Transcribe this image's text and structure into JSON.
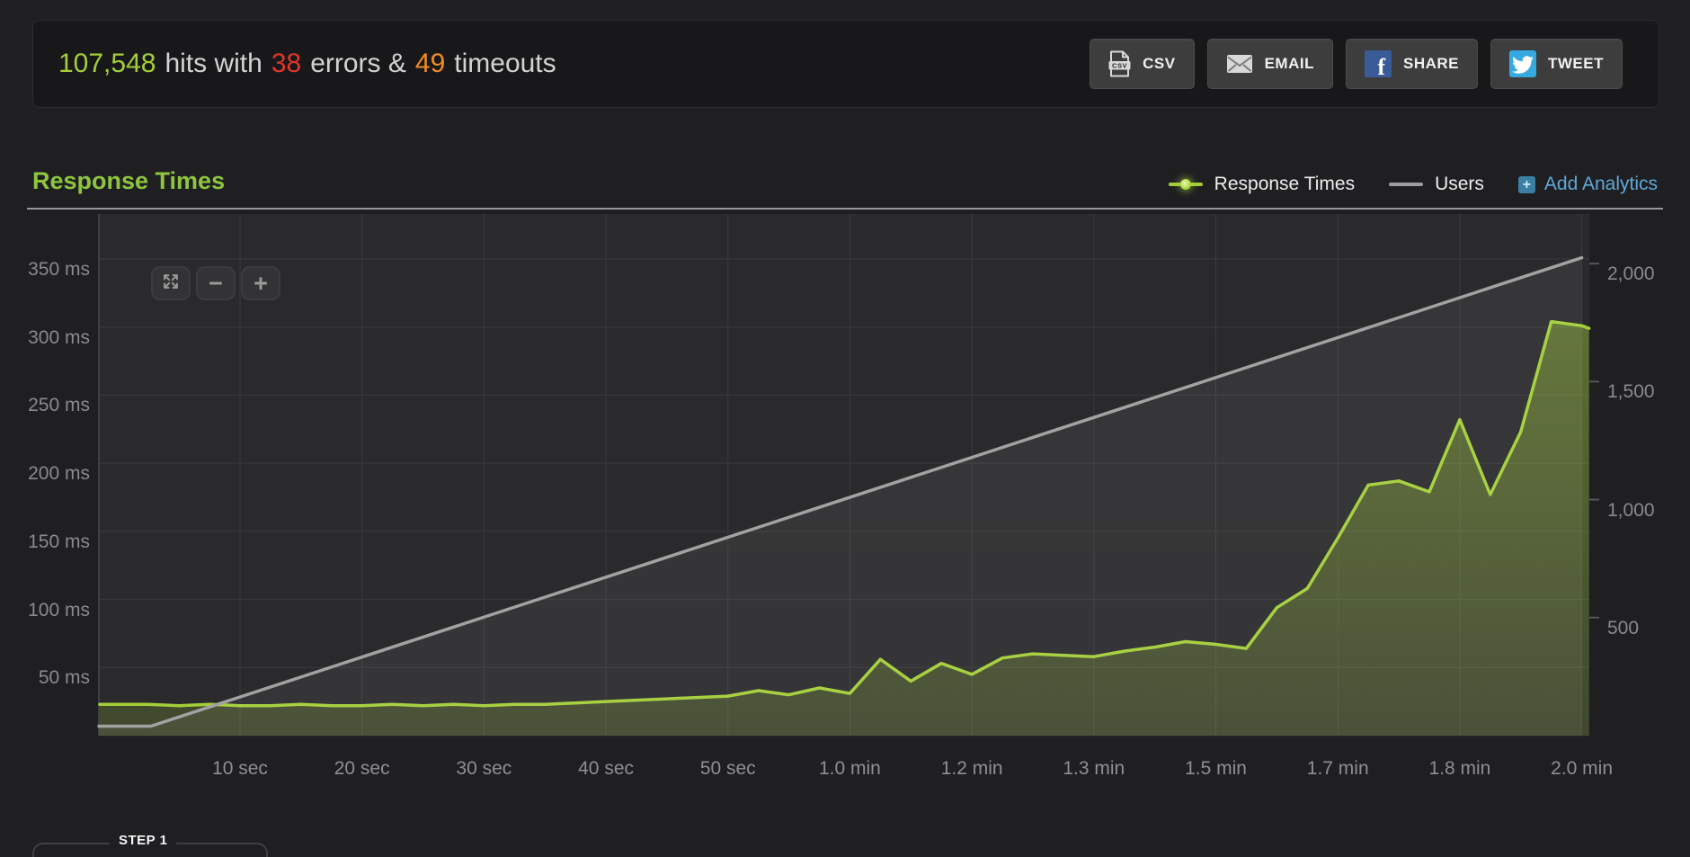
{
  "stats_bar": {
    "hits_value": "107,548",
    "hits_text": "hits with",
    "errors_value": "38",
    "errors_text": "errors &",
    "timeouts_value": "49",
    "timeouts_text": "timeouts",
    "buttons": {
      "csv": "CSV",
      "email": "EMAIL",
      "share": "SHARE",
      "tweet": "TWEET"
    }
  },
  "section": {
    "title": "Response Times"
  },
  "legend": {
    "response_times": "Response Times",
    "users": "Users",
    "add_analytics": "Add Analytics",
    "add_icon_glyph": "+"
  },
  "chart_controls": {
    "zoom_out_glyph": "−",
    "zoom_in_glyph": "+"
  },
  "step_section": {
    "label": "STEP 1"
  },
  "colors": {
    "accent_green": "#a3ce38",
    "title_green": "#8dc63e",
    "error_red": "#e0352b",
    "timeout_orange": "#ef8d22",
    "users_gray": "#a2a2a2",
    "analytics_blue": "#5da9d7",
    "facebook_blue": "#3a5a98",
    "twitter_blue": "#36a9e0"
  },
  "chart_data": {
    "type": "area",
    "title": "Response Times",
    "grid": true,
    "legend_position": "top-right",
    "x_axis": {
      "unit": "seconds",
      "min": -1.57,
      "max": 120.62,
      "ticks": [
        {
          "v": 10,
          "label": "10 sec"
        },
        {
          "v": 20,
          "label": "20 sec"
        },
        {
          "v": 30,
          "label": "30 sec"
        },
        {
          "v": 40,
          "label": "40 sec"
        },
        {
          "v": 50,
          "label": "50 sec"
        },
        {
          "v": 60,
          "label": "1.0 min"
        },
        {
          "v": 70,
          "label": "1.2 min"
        },
        {
          "v": 80,
          "label": "1.3 min"
        },
        {
          "v": 90,
          "label": "1.5 min"
        },
        {
          "v": 100,
          "label": "1.7 min"
        },
        {
          "v": 110,
          "label": "1.8 min"
        },
        {
          "v": 120,
          "label": "2.0 min"
        }
      ]
    },
    "y_axis_left": {
      "unit": "ms",
      "min": 0,
      "max": 383,
      "ticks": [
        {
          "v": 50,
          "label": "50 ms"
        },
        {
          "v": 100,
          "label": "100 ms"
        },
        {
          "v": 150,
          "label": "150 ms"
        },
        {
          "v": 200,
          "label": "200 ms"
        },
        {
          "v": 250,
          "label": "250 ms"
        },
        {
          "v": 300,
          "label": "300 ms"
        },
        {
          "v": 350,
          "label": "350 ms"
        }
      ]
    },
    "y_axis_right": {
      "unit": "users",
      "min": 0,
      "max": 2210,
      "ticks": [
        {
          "v": 500,
          "label": "500"
        },
        {
          "v": 1000,
          "label": "1,000"
        },
        {
          "v": 1500,
          "label": "1,500"
        },
        {
          "v": 2000,
          "label": "2,000"
        }
      ]
    },
    "series": [
      {
        "name": "Response Times",
        "axis": "left",
        "color": "#a3ce38",
        "fill_top": "rgba(163,206,56,0.42)",
        "fill_bottom": "rgba(163,206,56,0.18)",
        "data": [
          [
            -1.5,
            23
          ],
          [
            2.5,
            23
          ],
          [
            5,
            22
          ],
          [
            7.5,
            23
          ],
          [
            10,
            22
          ],
          [
            12.5,
            22
          ],
          [
            15,
            23
          ],
          [
            17.5,
            22
          ],
          [
            20,
            22
          ],
          [
            22.5,
            23
          ],
          [
            25,
            22
          ],
          [
            27.5,
            23
          ],
          [
            30,
            22
          ],
          [
            32.5,
            23
          ],
          [
            35,
            23
          ],
          [
            37.5,
            24
          ],
          [
            40,
            25
          ],
          [
            42.5,
            26
          ],
          [
            45,
            27
          ],
          [
            47.5,
            28
          ],
          [
            50,
            29
          ],
          [
            52.5,
            33
          ],
          [
            55,
            30
          ],
          [
            57.5,
            35
          ],
          [
            60,
            31
          ],
          [
            62.5,
            56
          ],
          [
            65,
            40
          ],
          [
            67.5,
            53
          ],
          [
            70,
            45
          ],
          [
            72.5,
            57
          ],
          [
            75,
            60
          ],
          [
            77.5,
            59
          ],
          [
            80,
            58
          ],
          [
            82.5,
            62
          ],
          [
            85,
            65
          ],
          [
            87.5,
            69
          ],
          [
            90,
            67
          ],
          [
            92.5,
            64
          ],
          [
            95,
            94
          ],
          [
            97.5,
            108
          ],
          [
            100,
            145
          ],
          [
            102.5,
            184
          ],
          [
            105,
            187
          ],
          [
            107.5,
            179
          ],
          [
            110,
            232
          ],
          [
            112.5,
            177
          ],
          [
            115,
            223
          ],
          [
            117.5,
            304
          ],
          [
            120,
            301
          ],
          [
            120.6,
            299
          ]
        ]
      },
      {
        "name": "Users",
        "axis": "right",
        "color": "#a2a2a2",
        "fill_top": "rgba(255,255,255,0.06)",
        "fill_bottom": "rgba(255,255,255,0.05)",
        "data": [
          [
            -1.57,
            40
          ],
          [
            2.7,
            40
          ],
          [
            120,
            2025
          ]
        ]
      }
    ]
  }
}
